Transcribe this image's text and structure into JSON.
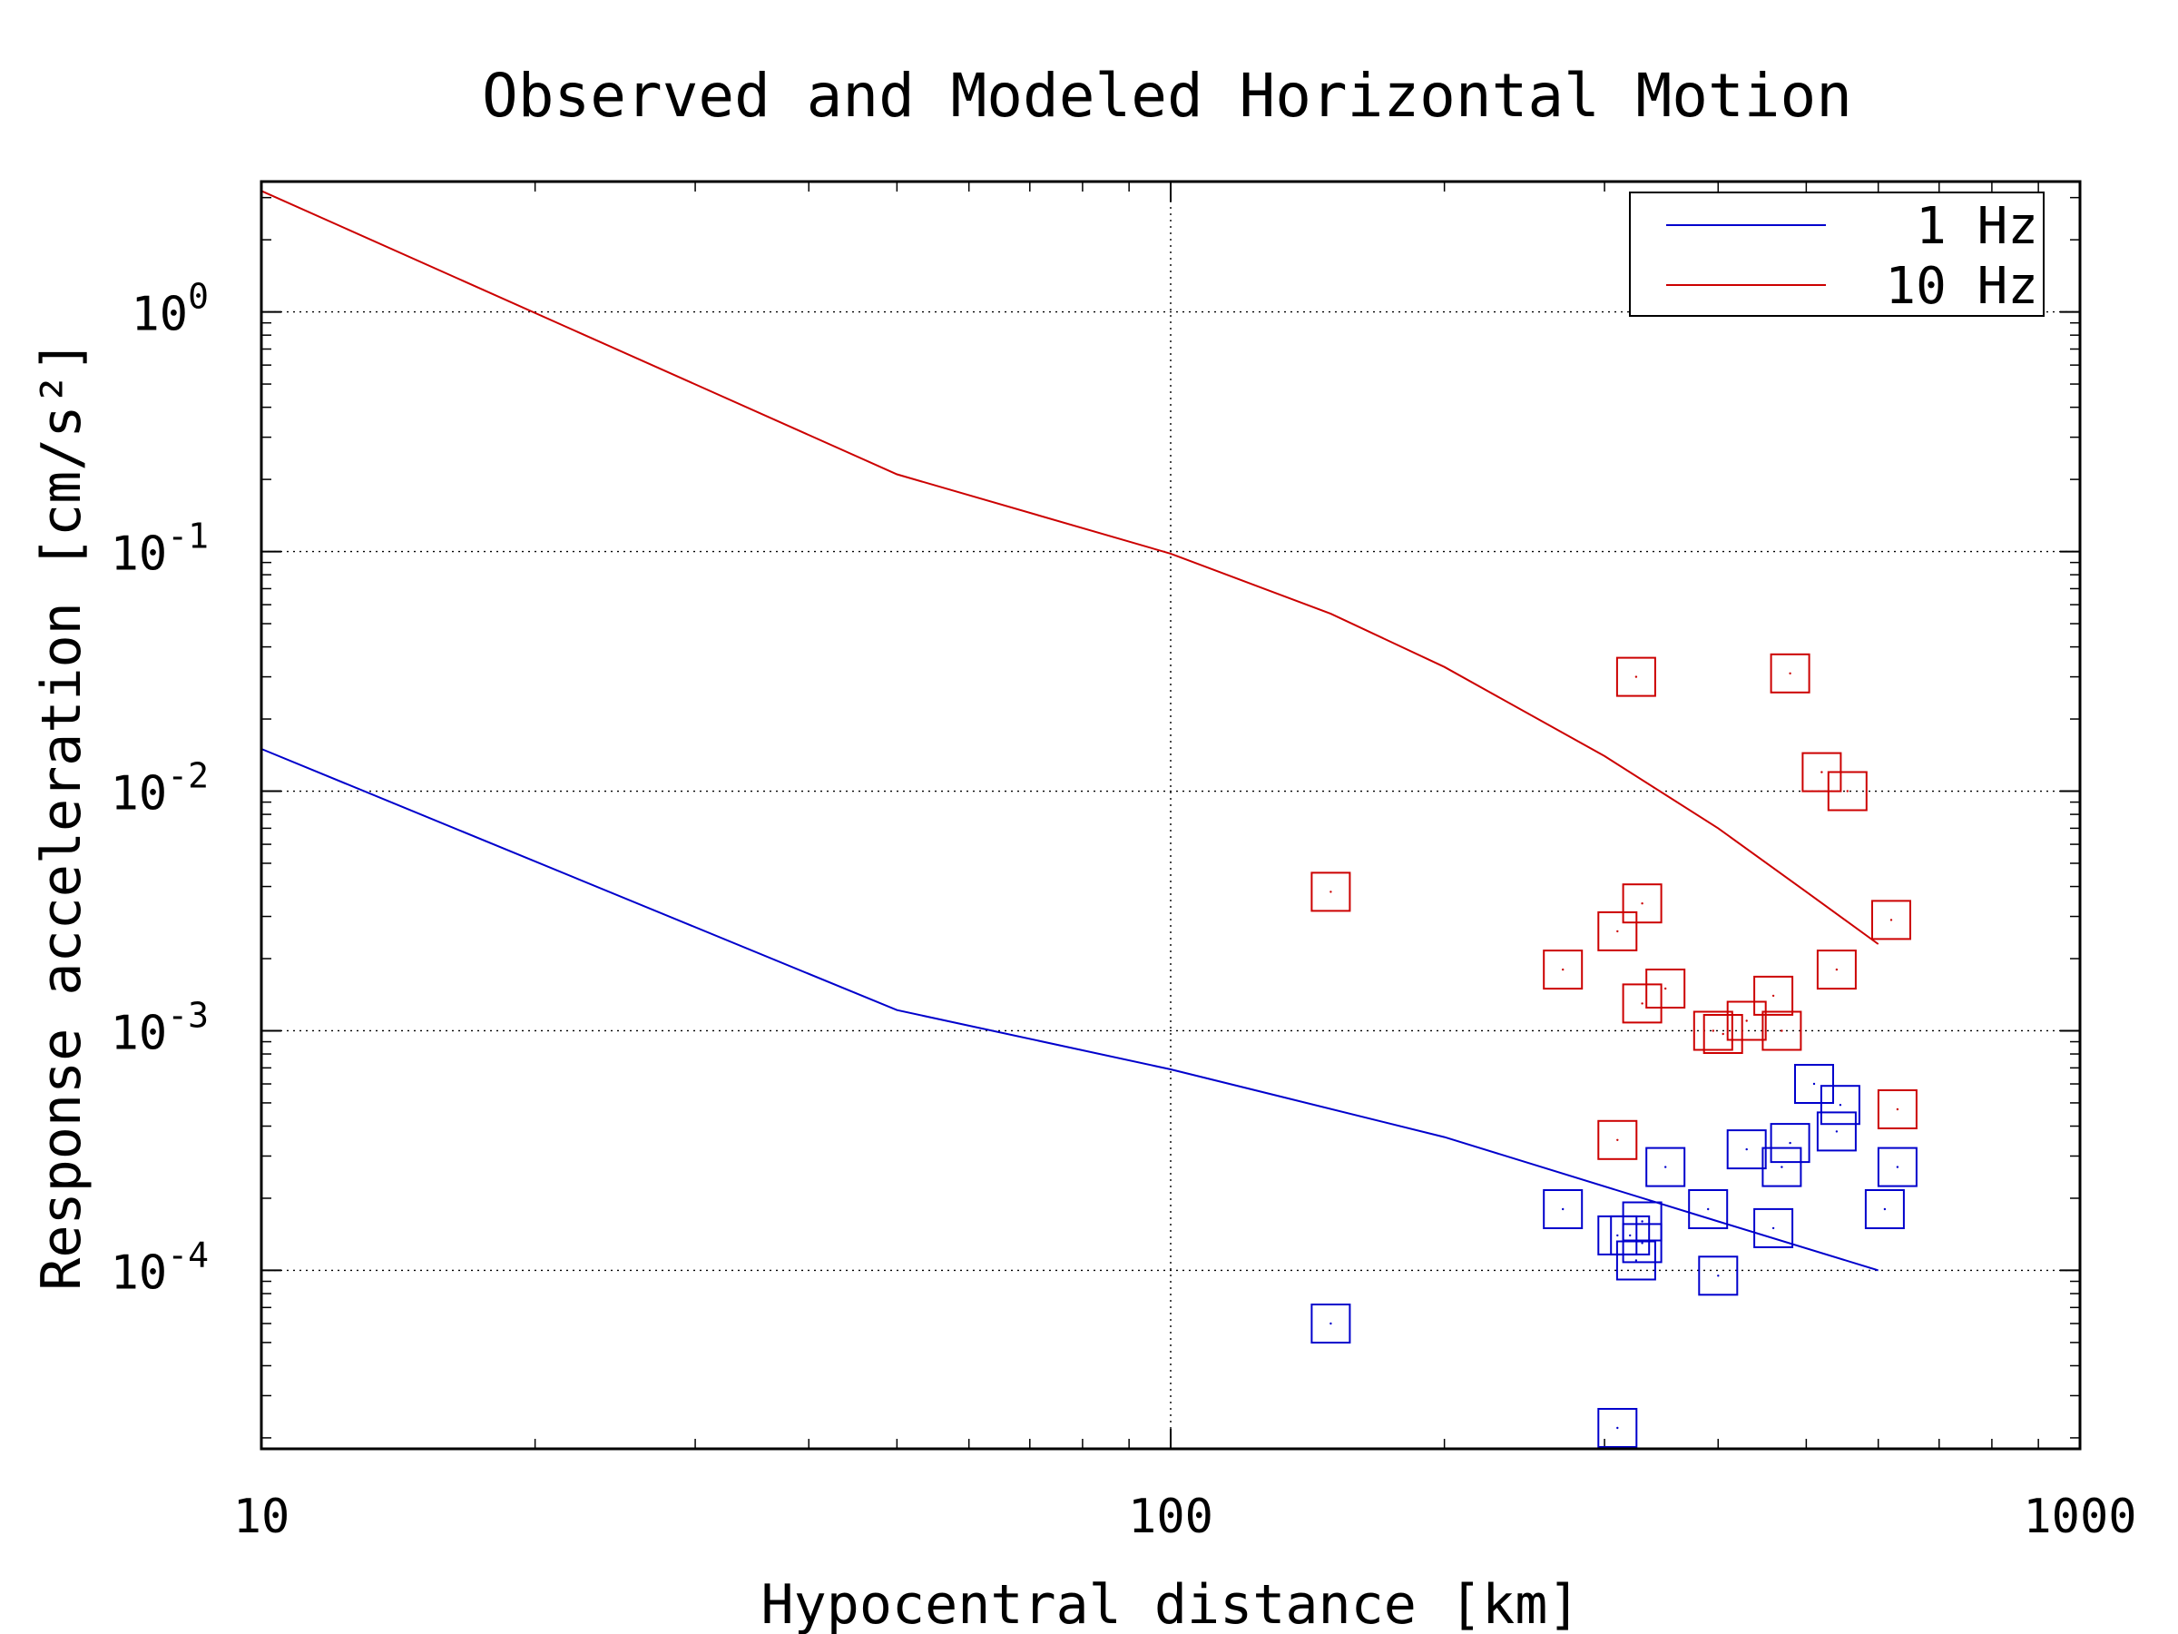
{
  "chart_data": {
    "type": "scatter",
    "title": "Observed and Modeled Horizontal Motion",
    "xlabel": "Hypocentral distance [km]",
    "ylabel": "Response acceleration [cm/s²]",
    "xscale": "log",
    "yscale": "log",
    "xlim": [
      10,
      1000
    ],
    "ylim": [
      1.8e-05,
      3.5
    ],
    "grid": "major dotted",
    "legend_position": "top-right",
    "xticks": [
      {
        "value": 10,
        "label": "10"
      },
      {
        "value": 100,
        "label": "100"
      },
      {
        "value": 1000,
        "label": "1000"
      }
    ],
    "yticks": [
      {
        "value": 1,
        "base": "10",
        "exp": "0"
      },
      {
        "value": 0.1,
        "base": "10",
        "exp": "-1"
      },
      {
        "value": 0.01,
        "base": "10",
        "exp": "-2"
      },
      {
        "value": 0.001,
        "base": "10",
        "exp": "-3"
      },
      {
        "value": 0.0001,
        "base": "10",
        "exp": "-4"
      }
    ],
    "series": [
      {
        "name": "1 Hz",
        "color": "#0000cc",
        "model_line": [
          [
            10,
            0.015
          ],
          [
            50,
            0.00122
          ],
          [
            100,
            0.00069
          ],
          [
            200,
            0.00036
          ],
          [
            400,
            0.00016
          ],
          [
            600,
            0.0001
          ]
        ],
        "observed": [
          [
            150,
            6e-05
          ],
          [
            270,
            0.00018
          ],
          [
            310,
            2.2e-05
          ],
          [
            310,
            0.00014
          ],
          [
            320,
            0.00014
          ],
          [
            325,
            0.00011
          ],
          [
            330,
            0.00013
          ],
          [
            330,
            0.00016
          ],
          [
            350,
            0.00027
          ],
          [
            390,
            0.00018
          ],
          [
            400,
            9.5e-05
          ],
          [
            430,
            0.00032
          ],
          [
            460,
            0.00015
          ],
          [
            470,
            0.00027
          ],
          [
            480,
            0.00034
          ],
          [
            510,
            0.0006
          ],
          [
            540,
            0.00038
          ],
          [
            545,
            0.00049
          ],
          [
            610,
            0.00018
          ],
          [
            630,
            0.00027
          ]
        ]
      },
      {
        "name": "10 Hz",
        "color": "#cc0000",
        "model_line": [
          [
            10,
            3.2
          ],
          [
            50,
            0.21
          ],
          [
            100,
            0.098
          ],
          [
            150,
            0.055
          ],
          [
            200,
            0.033
          ],
          [
            300,
            0.014
          ],
          [
            400,
            0.007
          ],
          [
            500,
            0.0038
          ],
          [
            600,
            0.0023
          ]
        ],
        "observed": [
          [
            150,
            0.0038
          ],
          [
            270,
            0.0018
          ],
          [
            310,
            0.00035
          ],
          [
            310,
            0.0026
          ],
          [
            325,
            0.03
          ],
          [
            330,
            0.0013
          ],
          [
            330,
            0.0034
          ],
          [
            350,
            0.0015
          ],
          [
            395,
            0.001
          ],
          [
            405,
            0.00097
          ],
          [
            430,
            0.0011
          ],
          [
            460,
            0.0014
          ],
          [
            470,
            0.001
          ],
          [
            480,
            0.031
          ],
          [
            520,
            0.012
          ],
          [
            540,
            0.0018
          ],
          [
            555,
            0.01
          ],
          [
            620,
            0.0029
          ],
          [
            630,
            0.00047
          ]
        ]
      }
    ]
  }
}
